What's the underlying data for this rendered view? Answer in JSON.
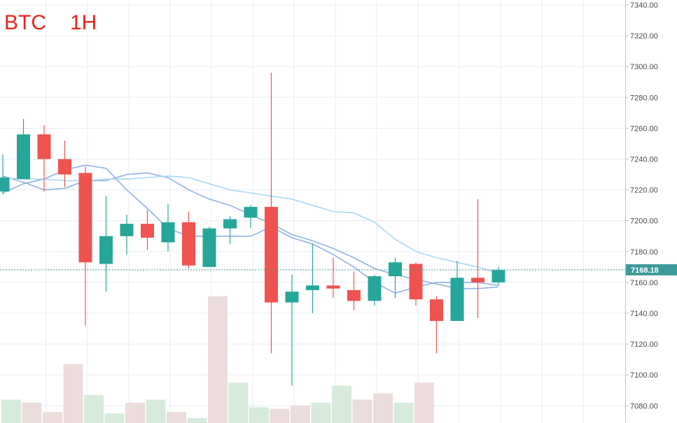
{
  "header": {
    "symbol": "BTC",
    "timeframe": "1H"
  },
  "colors": {
    "up": "#26a69a",
    "down": "#ef5350",
    "vol_up": "#d6ebdc",
    "vol_down": "#ecdcdc",
    "ma_fast": "#8fb3e0",
    "ma_mid": "#8fb3e0",
    "ma_slow": "#a9d8f2",
    "grid": "#e6eef6",
    "price_line": "#3c9a9a"
  },
  "chart_data": {
    "type": "candlestick",
    "symbol": "BTC",
    "interval": "1H",
    "ylim": [
      7070,
      7345
    ],
    "y_ticks": [
      7080,
      7100,
      7120,
      7140,
      7160,
      7180,
      7200,
      7220,
      7240,
      7260,
      7280,
      7300,
      7320,
      7340
    ],
    "y_tick_labels": [
      "7080.00",
      "7100.00",
      "7120.00",
      "7140.00",
      "7160.00",
      "7180.00",
      "7200.00",
      "7220.00",
      "7240.00",
      "7260.00",
      "7280.00",
      "7300.00",
      "7320.00",
      "7340.00"
    ],
    "last_price": 7168.18,
    "last_price_label": "7168.18",
    "candles": [
      {
        "open": 7219,
        "high": 7243,
        "low": 7217,
        "close": 7228
      },
      {
        "open": 7227,
        "high": 7266,
        "low": 7227,
        "close": 7256
      },
      {
        "open": 7256,
        "high": 7262,
        "low": 7219,
        "close": 7240
      },
      {
        "open": 7240,
        "high": 7252,
        "low": 7222,
        "close": 7230
      },
      {
        "open": 7231,
        "high": 7235,
        "low": 7132,
        "close": 7173
      },
      {
        "open": 7172,
        "high": 7216,
        "low": 7154,
        "close": 7190
      },
      {
        "open": 7190,
        "high": 7204,
        "low": 7178,
        "close": 7198
      },
      {
        "open": 7198,
        "high": 7207,
        "low": 7181,
        "close": 7189
      },
      {
        "open": 7186,
        "high": 7211,
        "low": 7180,
        "close": 7199
      },
      {
        "open": 7199,
        "high": 7206,
        "low": 7169,
        "close": 7171
      },
      {
        "open": 7170,
        "high": 7196,
        "low": 7170,
        "close": 7195
      },
      {
        "open": 7195,
        "high": 7203,
        "low": 7185,
        "close": 7201
      },
      {
        "open": 7202,
        "high": 7210,
        "low": 7195,
        "close": 7209
      },
      {
        "open": 7209,
        "high": 7296,
        "low": 7114,
        "close": 7147
      },
      {
        "open": 7147,
        "high": 7165,
        "low": 7093,
        "close": 7154
      },
      {
        "open": 7155,
        "high": 7185,
        "low": 7140,
        "close": 7158
      },
      {
        "open": 7158,
        "high": 7176,
        "low": 7150,
        "close": 7156
      },
      {
        "open": 7155,
        "high": 7167,
        "low": 7142,
        "close": 7148
      },
      {
        "open": 7148,
        "high": 7165,
        "low": 7145,
        "close": 7164
      },
      {
        "open": 7164,
        "high": 7176,
        "low": 7150,
        "close": 7173
      },
      {
        "open": 7172,
        "high": 7173,
        "low": 7145,
        "close": 7149
      },
      {
        "open": 7149,
        "high": 7151,
        "low": 7114,
        "close": 7135
      },
      {
        "open": 7135,
        "high": 7174,
        "low": 7135,
        "close": 7163
      },
      {
        "open": 7163,
        "high": 7214,
        "low": 7137,
        "close": 7160
      },
      {
        "open": 7160,
        "high": 7170,
        "low": 7158,
        "close": 7168
      }
    ],
    "volume": [
      {
        "level": 7084,
        "dir": "up"
      },
      {
        "level": 7082,
        "dir": "down"
      },
      {
        "level": 7076,
        "dir": "down"
      },
      {
        "level": 7107,
        "dir": "down"
      },
      {
        "level": 7087,
        "dir": "up"
      },
      {
        "level": 7075,
        "dir": "up"
      },
      {
        "level": 7082,
        "dir": "down"
      },
      {
        "level": 7084,
        "dir": "up"
      },
      {
        "level": 7076,
        "dir": "down"
      },
      {
        "level": 7072,
        "dir": "up"
      },
      {
        "level": 7151,
        "dir": "down"
      },
      {
        "level": 7095,
        "dir": "up"
      },
      {
        "level": 7079,
        "dir": "up"
      },
      {
        "level": 7078,
        "dir": "down"
      },
      {
        "level": 7080,
        "dir": "down"
      },
      {
        "level": 7082,
        "dir": "up"
      },
      {
        "level": 7093,
        "dir": "up"
      },
      {
        "level": 7084,
        "dir": "down"
      },
      {
        "level": 7088,
        "dir": "down"
      },
      {
        "level": 7082,
        "dir": "up"
      },
      {
        "level": 7095,
        "dir": "down"
      }
    ],
    "ma_lines": [
      {
        "values": [
          7218,
          7224,
          7227,
          7233,
          7236,
          7234,
          7220,
          7208,
          7195,
          7190,
          7190,
          7190,
          7190,
          7196,
          7189,
          7185,
          7178,
          7170,
          7160,
          7153,
          7157,
          7160,
          7160,
          7160,
          7158
        ]
      },
      {
        "values": [
          7229,
          7225,
          7220,
          7221,
          7226,
          7226,
          7230,
          7231,
          7228,
          7220,
          7214,
          7210,
          7204,
          7198,
          7191,
          7187,
          7182,
          7176,
          7169,
          7165,
          7162,
          7159,
          7156,
          7156,
          7157
        ]
      },
      {
        "values": [
          7228,
          7227,
          7227,
          7226,
          7226,
          7227,
          7227,
          7228,
          7229,
          7228,
          7224,
          7220,
          7218,
          7216,
          7214,
          7210,
          7206,
          7205,
          7199,
          7188,
          7180,
          7176,
          7173,
          7170,
          7166
        ]
      }
    ]
  }
}
